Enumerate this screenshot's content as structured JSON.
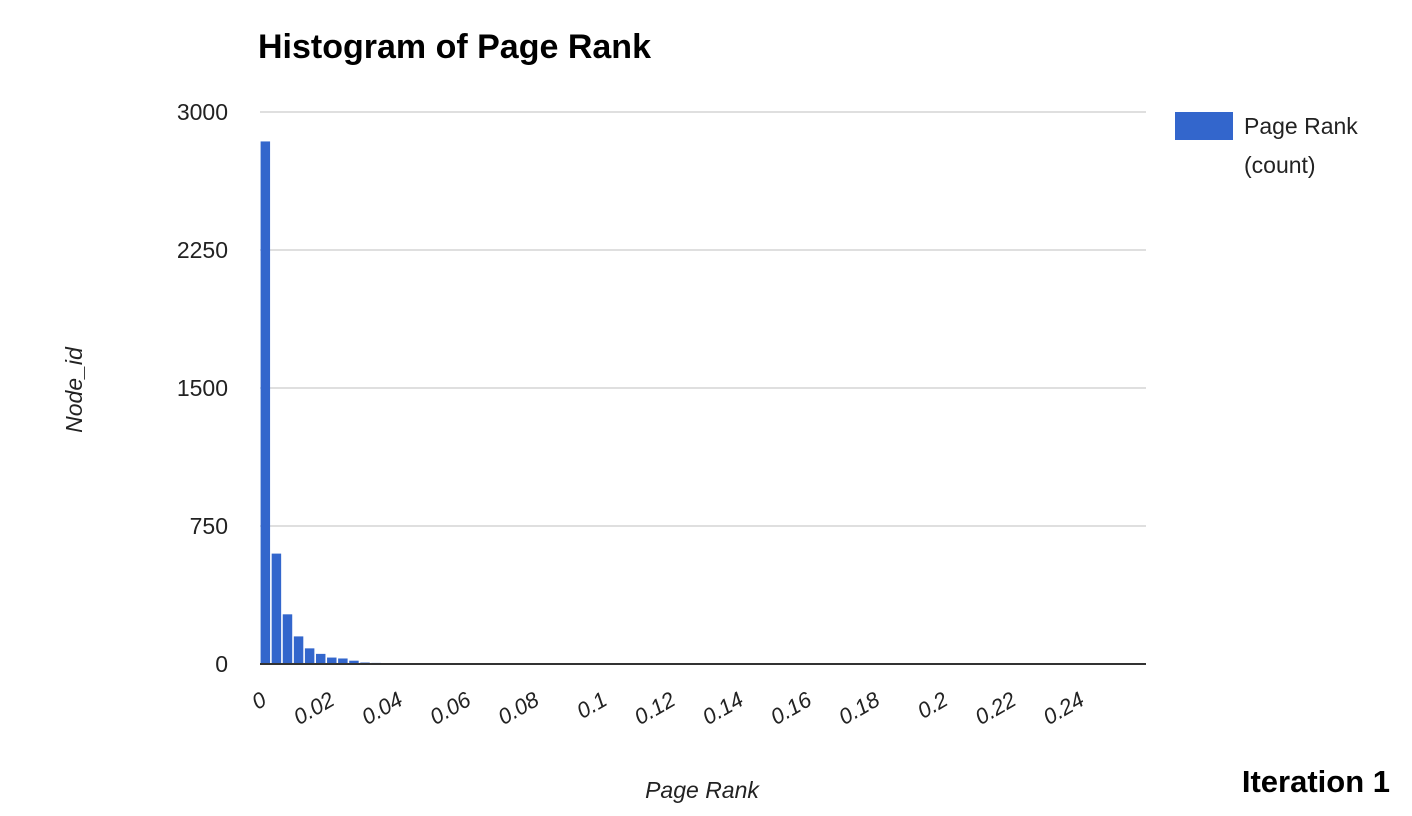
{
  "chart_data": {
    "type": "bar",
    "title": "Histogram of Page Rank",
    "xlabel": "Page Rank",
    "ylabel": "Node_id",
    "ylim": [
      0,
      3000
    ],
    "yticks": [
      "0",
      "750",
      "1500",
      "2250",
      "3000"
    ],
    "xlim": [
      0,
      0.26
    ],
    "xticks": [
      "0",
      "0.02",
      "0.04",
      "0.06",
      "0.08",
      "0.1",
      "0.12",
      "0.14",
      "0.16",
      "0.18",
      "0.2",
      "0.22",
      "0.24"
    ],
    "bin_width": 0.00325,
    "series": [
      {
        "name": "Page Rank (count)",
        "color": "#3366cc",
        "values": [
          2840,
          600,
          270,
          150,
          85,
          55,
          35,
          30,
          18,
          8,
          6,
          5,
          4,
          4,
          3,
          3,
          2,
          2,
          2,
          2,
          2,
          2,
          1,
          1,
          1,
          1,
          1,
          1,
          1,
          1,
          1,
          1,
          1,
          1,
          1,
          1,
          1,
          1,
          1,
          1,
          1,
          1,
          1,
          1,
          1,
          1,
          1,
          1,
          1,
          1,
          1,
          1,
          1,
          1,
          1,
          1,
          1,
          1,
          1,
          1,
          1,
          1,
          1,
          1,
          1,
          1,
          1,
          1,
          1,
          1,
          1,
          1,
          1,
          1,
          1,
          1,
          1,
          1,
          1,
          1
        ]
      }
    ],
    "grid": true,
    "legend": {
      "position": "right",
      "lines": [
        "Page Rank",
        "(count)"
      ]
    }
  },
  "caption": "Iteration 1"
}
